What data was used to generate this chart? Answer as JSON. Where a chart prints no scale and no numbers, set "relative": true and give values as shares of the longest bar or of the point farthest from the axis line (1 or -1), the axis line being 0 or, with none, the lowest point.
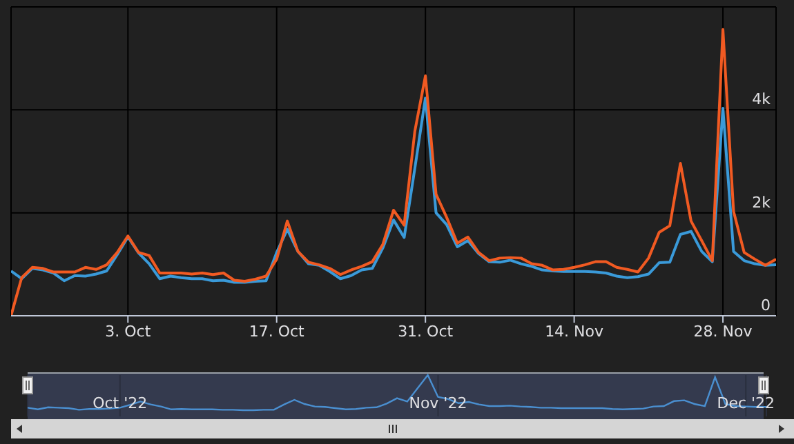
{
  "chart_data": [
    {
      "type": "line",
      "x": [
        "2022-09-22",
        "2022-09-23",
        "2022-09-24",
        "2022-09-25",
        "2022-09-26",
        "2022-09-27",
        "2022-09-28",
        "2022-09-29",
        "2022-09-30",
        "2022-10-01",
        "2022-10-02",
        "2022-10-03",
        "2022-10-04",
        "2022-10-05",
        "2022-10-06",
        "2022-10-07",
        "2022-10-08",
        "2022-10-09",
        "2022-10-10",
        "2022-10-11",
        "2022-10-12",
        "2022-10-13",
        "2022-10-14",
        "2022-10-15",
        "2022-10-16",
        "2022-10-17",
        "2022-10-18",
        "2022-10-19",
        "2022-10-20",
        "2022-10-21",
        "2022-10-22",
        "2022-10-23",
        "2022-10-24",
        "2022-10-25",
        "2022-10-26",
        "2022-10-27",
        "2022-10-28",
        "2022-10-29",
        "2022-10-30",
        "2022-10-31",
        "2022-11-01",
        "2022-11-02",
        "2022-11-03",
        "2022-11-04",
        "2022-11-05",
        "2022-11-06",
        "2022-11-07",
        "2022-11-08",
        "2022-11-09",
        "2022-11-10",
        "2022-11-11",
        "2022-11-12",
        "2022-11-13",
        "2022-11-14",
        "2022-11-15",
        "2022-11-16",
        "2022-11-17",
        "2022-11-18",
        "2022-11-19",
        "2022-11-20",
        "2022-11-21",
        "2022-11-22",
        "2022-11-23",
        "2022-11-24",
        "2022-11-25",
        "2022-11-26",
        "2022-11-27",
        "2022-11-28",
        "2022-11-29",
        "2022-11-30",
        "2022-12-01",
        "2022-12-02",
        "2022-12-03"
      ],
      "series": [
        {
          "color": "#3a9ad9",
          "values": [
            870,
            720,
            920,
            890,
            830,
            680,
            780,
            770,
            810,
            870,
            1190,
            1530,
            1220,
            1010,
            720,
            770,
            740,
            720,
            720,
            680,
            690,
            650,
            650,
            670,
            680,
            1230,
            1680,
            1250,
            1010,
            980,
            860,
            720,
            780,
            890,
            920,
            1320,
            1860,
            1520,
            2860,
            4230,
            2000,
            1770,
            1340,
            1460,
            1210,
            1050,
            1040,
            1080,
            1010,
            960,
            890,
            870,
            860,
            860,
            860,
            850,
            830,
            770,
            740,
            760,
            810,
            1030,
            1040,
            1580,
            1640,
            1250,
            1050,
            4030,
            1250,
            1070,
            1010,
            980,
            990
          ]
        },
        {
          "color": "#f15a22",
          "values": [
            0,
            740,
            940,
            920,
            850,
            850,
            850,
            940,
            900,
            990,
            1230,
            1550,
            1230,
            1170,
            830,
            830,
            830,
            810,
            830,
            800,
            830,
            690,
            670,
            710,
            770,
            1100,
            1840,
            1250,
            1040,
            990,
            920,
            800,
            890,
            960,
            1050,
            1390,
            2050,
            1760,
            3580,
            4660,
            2360,
            1910,
            1410,
            1530,
            1230,
            1070,
            1120,
            1130,
            1120,
            1010,
            980,
            890,
            900,
            940,
            990,
            1050,
            1050,
            940,
            900,
            850,
            1120,
            1620,
            1750,
            2960,
            1840,
            1460,
            1070,
            5560,
            2030,
            1230,
            1100,
            980,
            1100
          ]
        }
      ],
      "xlim": [
        "2022-09-22",
        "2022-12-03"
      ],
      "xticks": [
        {
          "value": "2022-10-03",
          "label": "3. Oct"
        },
        {
          "value": "2022-10-17",
          "label": "17. Oct"
        },
        {
          "value": "2022-10-31",
          "label": "31. Oct"
        },
        {
          "value": "2022-11-14",
          "label": "14. Nov"
        },
        {
          "value": "2022-11-28",
          "label": "28. Nov"
        }
      ],
      "ylim": [
        0,
        6000
      ],
      "yticks": [
        {
          "value": 0,
          "label": "0"
        },
        {
          "value": 2000,
          "label": "2k"
        },
        {
          "value": 4000,
          "label": "4k"
        },
        {
          "value": 6000,
          "label": null
        }
      ],
      "grid": true,
      "legend": false,
      "marker": "none",
      "line_style": "solid"
    },
    {
      "type": "line",
      "relative": true,
      "x": [
        "2022-09-22",
        "2022-09-23",
        "2022-09-24",
        "2022-09-25",
        "2022-09-26",
        "2022-09-27",
        "2022-09-28",
        "2022-09-29",
        "2022-09-30",
        "2022-10-01",
        "2022-10-02",
        "2022-10-03",
        "2022-10-04",
        "2022-10-05",
        "2022-10-06",
        "2022-10-07",
        "2022-10-08",
        "2022-10-09",
        "2022-10-10",
        "2022-10-11",
        "2022-10-12",
        "2022-10-13",
        "2022-10-14",
        "2022-10-15",
        "2022-10-16",
        "2022-10-17",
        "2022-10-18",
        "2022-10-19",
        "2022-10-20",
        "2022-10-21",
        "2022-10-22",
        "2022-10-23",
        "2022-10-24",
        "2022-10-25",
        "2022-10-26",
        "2022-10-27",
        "2022-10-28",
        "2022-10-29",
        "2022-10-30",
        "2022-10-31",
        "2022-11-01",
        "2022-11-02",
        "2022-11-03",
        "2022-11-04",
        "2022-11-05",
        "2022-11-06",
        "2022-11-07",
        "2022-11-08",
        "2022-11-09",
        "2022-11-10",
        "2022-11-11",
        "2022-11-12",
        "2022-11-13",
        "2022-11-14",
        "2022-11-15",
        "2022-11-16",
        "2022-11-17",
        "2022-11-18",
        "2022-11-19",
        "2022-11-20",
        "2022-11-21",
        "2022-11-22",
        "2022-11-23",
        "2022-11-24",
        "2022-11-25",
        "2022-11-26",
        "2022-11-27",
        "2022-11-28",
        "2022-11-29",
        "2022-11-30",
        "2022-12-01",
        "2022-12-02",
        "2022-12-03"
      ],
      "series": [
        {
          "color": "#4a8fd0",
          "values": [
            0.21,
            0.17,
            0.22,
            0.21,
            0.2,
            0.16,
            0.18,
            0.18,
            0.19,
            0.21,
            0.28,
            0.36,
            0.29,
            0.24,
            0.17,
            0.18,
            0.17,
            0.17,
            0.17,
            0.16,
            0.16,
            0.15,
            0.15,
            0.16,
            0.16,
            0.29,
            0.4,
            0.3,
            0.24,
            0.23,
            0.2,
            0.17,
            0.18,
            0.21,
            0.22,
            0.31,
            0.44,
            0.36,
            0.68,
            1,
            0.47,
            0.42,
            0.32,
            0.35,
            0.29,
            0.25,
            0.25,
            0.26,
            0.24,
            0.23,
            0.21,
            0.21,
            0.2,
            0.2,
            0.2,
            0.2,
            0.2,
            0.18,
            0.17,
            0.18,
            0.19,
            0.24,
            0.25,
            0.37,
            0.39,
            0.3,
            0.25,
            0.95,
            0.3,
            0.25,
            0.24,
            0.23,
            0.23
          ]
        }
      ],
      "xlim": [
        "2022-09-22",
        "2022-12-03"
      ],
      "xticks": [
        {
          "value": "2022-10-01",
          "label": "Oct '22"
        },
        {
          "value": "2022-11-01",
          "label": "Nov '22"
        },
        {
          "value": "2022-12-01",
          "label": "Dec '22"
        }
      ],
      "grid": "x",
      "legend": false
    }
  ]
}
